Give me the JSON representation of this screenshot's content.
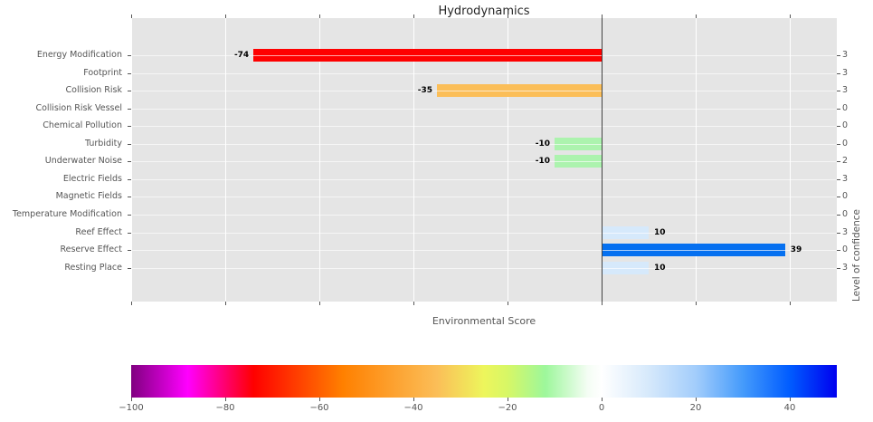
{
  "title": "Hydrodynamics",
  "chart_data": {
    "type": "bar",
    "orientation": "horizontal",
    "title": "Hydrodynamics",
    "xlabel": "Environmental Score",
    "right_ylabel": "Level of confidence",
    "xlim": [
      -100,
      50
    ],
    "x_tick_values": [
      -100,
      -80,
      -60,
      -40,
      -20,
      0,
      20,
      40
    ],
    "grid": "on",
    "categories": [
      "Energy Modification",
      "Footprint",
      "Collision Risk",
      "Collision Risk Vessel",
      "Chemical Pollution",
      "Turbidity",
      "Underwater Noise",
      "Electric Fields",
      "Magnetic Fields",
      "Temperature Modification",
      "Reef Effect",
      "Reserve Effect",
      "Resting Place"
    ],
    "series": [
      {
        "name": "Environmental Score",
        "values": [
          -74,
          null,
          -35,
          null,
          null,
          -10,
          -10,
          null,
          null,
          null,
          10,
          39,
          10
        ]
      },
      {
        "name": "Level of confidence",
        "values": [
          3,
          3,
          3,
          0,
          0,
          0,
          2,
          3,
          0,
          0,
          3,
          0,
          3
        ]
      }
    ],
    "bar_value_labels": [
      "-74",
      "",
      "-35",
      "",
      "",
      "-10",
      "-10",
      "",
      "",
      "",
      "10",
      "39",
      "10"
    ],
    "bar_colors": [
      "#fe0000",
      null,
      "#fbbe58",
      null,
      null,
      "#acf3ae",
      "#acf3ae",
      null,
      null,
      null,
      "#d6e9fb",
      "#0570f0",
      "#d6e9fb"
    ],
    "colorbar": {
      "range": [
        -100,
        50
      ],
      "tick_values": [
        -100,
        -80,
        -60,
        -40,
        -20,
        0,
        20,
        40
      ],
      "tick_labels": [
        "−100",
        "−80",
        "−60",
        "−40",
        "−20",
        "0",
        "20",
        "40"
      ],
      "gradient_stops": [
        {
          "value": -100,
          "color": "#800080"
        },
        {
          "value": -88,
          "color": "#ff00ff"
        },
        {
          "value": -74,
          "color": "#ff0000"
        },
        {
          "value": -55,
          "color": "#ff8000"
        },
        {
          "value": -35,
          "color": "#fbbe58"
        },
        {
          "value": -25,
          "color": "#edf65c"
        },
        {
          "value": -20,
          "color": "#d7f766"
        },
        {
          "value": -12,
          "color": "#9df79b"
        },
        {
          "value": -3,
          "color": "#f4fdf4"
        },
        {
          "value": 0,
          "color": "#ffffff"
        },
        {
          "value": 10,
          "color": "#d6e9fb"
        },
        {
          "value": 20,
          "color": "#a3cdfb"
        },
        {
          "value": 30,
          "color": "#459bfb"
        },
        {
          "value": 40,
          "color": "#005cff"
        },
        {
          "value": 50,
          "color": "#0000ef"
        }
      ]
    }
  },
  "colors": {
    "plot_background": "#e5e5e5",
    "gridline": "#ffffff",
    "zero_line": "#444444",
    "tick_text": "#555555",
    "title_text": "#262626",
    "value_label_text": "#000000"
  }
}
